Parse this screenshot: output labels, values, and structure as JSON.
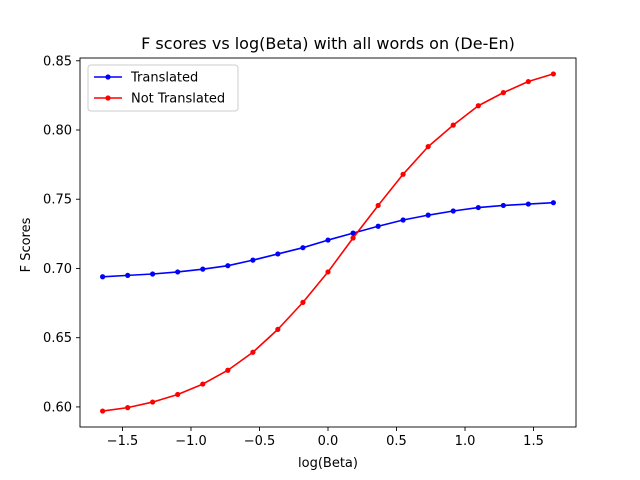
{
  "chart_data": {
    "type": "line",
    "title": "F scores vs log(Beta) with all words on (De-En)",
    "xlabel": "log(Beta)",
    "ylabel": "F Scores",
    "xlim": [
      -1.81,
      1.81
    ],
    "ylim": [
      0.5855,
      0.852
    ],
    "xticks": [
      -1.5,
      -1.0,
      -0.5,
      0.0,
      0.5,
      1.0,
      1.5
    ],
    "xtick_labels": [
      "−1.5",
      "−1.0",
      "−0.5",
      "0.0",
      "0.5",
      "1.0",
      "1.5"
    ],
    "yticks": [
      0.6,
      0.65,
      0.7,
      0.75,
      0.8,
      0.85
    ],
    "ytick_labels": [
      "0.60",
      "0.65",
      "0.70",
      "0.75",
      "0.80",
      "0.85"
    ],
    "grid": false,
    "legend_position": "upper-left",
    "x": [
      -1.645,
      -1.462,
      -1.28,
      -1.097,
      -0.914,
      -0.731,
      -0.548,
      -0.366,
      -0.183,
      0.0,
      0.183,
      0.366,
      0.548,
      0.731,
      0.914,
      1.097,
      1.28,
      1.462,
      1.645
    ],
    "series": [
      {
        "name": "Translated",
        "color": "#0000ff",
        "values": [
          0.694,
          0.695,
          0.696,
          0.6975,
          0.6995,
          0.702,
          0.706,
          0.7105,
          0.715,
          0.7205,
          0.7255,
          0.7305,
          0.735,
          0.7385,
          0.7415,
          0.744,
          0.7455,
          0.7465,
          0.7475
        ]
      },
      {
        "name": "Not Translated",
        "color": "#ff0000",
        "values": [
          0.597,
          0.5995,
          0.6035,
          0.609,
          0.6165,
          0.6265,
          0.6395,
          0.656,
          0.6755,
          0.6975,
          0.722,
          0.7455,
          0.768,
          0.788,
          0.8035,
          0.8175,
          0.827,
          0.835,
          0.8405
        ]
      }
    ]
  }
}
